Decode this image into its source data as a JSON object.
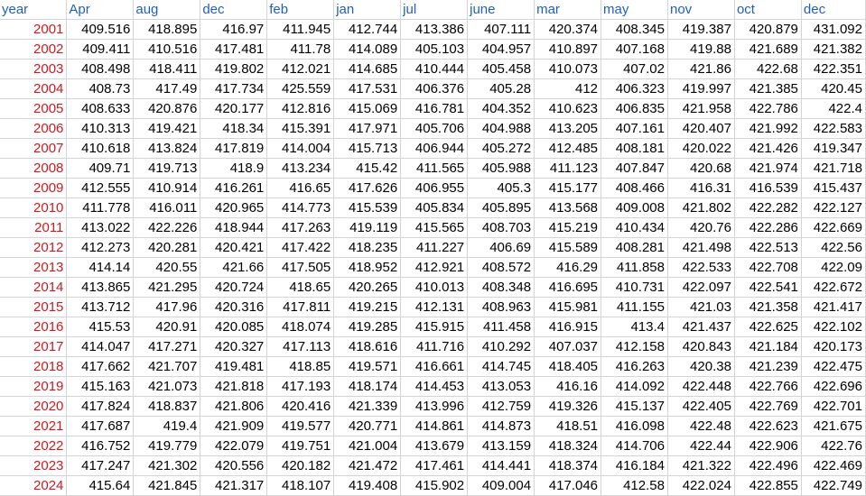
{
  "colors": {
    "header_text": "#1f5fbf",
    "year_text": "#d0191e",
    "cell_text": "#000000",
    "gridline": "#d4d4d4"
  },
  "headers": [
    "year",
    "Apr",
    "aug",
    "dec",
    "feb",
    "jan",
    "jul",
    "june",
    "mar",
    "may",
    "nov",
    "oct",
    "dec"
  ],
  "rows": [
    [
      "2001",
      "409.516",
      "418.895",
      "416.97",
      "411.945",
      "412.744",
      "413.386",
      "407.111",
      "420.374",
      "408.345",
      "419.387",
      "420.879",
      "431.092"
    ],
    [
      "2002",
      "409.411",
      "410.516",
      "417.481",
      "411.78",
      "414.089",
      "405.103",
      "404.957",
      "410.897",
      "407.168",
      "419.88",
      "421.689",
      "421.382"
    ],
    [
      "2003",
      "408.498",
      "418.411",
      "419.802",
      "412.021",
      "414.685",
      "410.444",
      "405.458",
      "410.073",
      "407.02",
      "421.86",
      "422.68",
      "422.351"
    ],
    [
      "2004",
      "408.73",
      "417.49",
      "417.734",
      "425.559",
      "417.531",
      "406.376",
      "405.28",
      "412",
      "406.323",
      "419.997",
      "421.385",
      "420.45"
    ],
    [
      "2005",
      "408.633",
      "420.876",
      "420.177",
      "412.816",
      "415.069",
      "416.781",
      "404.352",
      "410.623",
      "406.835",
      "421.958",
      "422.786",
      "422.4"
    ],
    [
      "2006",
      "410.313",
      "419.421",
      "418.34",
      "415.391",
      "417.971",
      "405.706",
      "404.988",
      "413.205",
      "407.161",
      "420.407",
      "421.992",
      "422.583"
    ],
    [
      "2007",
      "410.618",
      "413.824",
      "417.819",
      "414.004",
      "415.713",
      "406.944",
      "405.272",
      "412.485",
      "408.181",
      "420.022",
      "421.426",
      "419.347"
    ],
    [
      "2008",
      "409.71",
      "419.713",
      "418.9",
      "413.234",
      "415.42",
      "411.565",
      "405.988",
      "411.123",
      "407.847",
      "420.68",
      "421.974",
      "421.718"
    ],
    [
      "2009",
      "412.555",
      "410.914",
      "416.261",
      "416.65",
      "417.626",
      "406.955",
      "405.3",
      "415.177",
      "408.466",
      "416.31",
      "416.539",
      "415.437"
    ],
    [
      "2010",
      "411.778",
      "416.011",
      "420.965",
      "414.773",
      "415.539",
      "405.834",
      "405.895",
      "413.568",
      "409.008",
      "421.802",
      "422.282",
      "422.127"
    ],
    [
      "2011",
      "413.022",
      "422.226",
      "418.944",
      "417.263",
      "419.119",
      "415.565",
      "408.703",
      "415.219",
      "410.434",
      "420.76",
      "422.286",
      "422.669"
    ],
    [
      "2012",
      "412.273",
      "420.281",
      "420.421",
      "417.422",
      "418.235",
      "411.227",
      "406.69",
      "415.589",
      "408.281",
      "421.498",
      "422.513",
      "422.56"
    ],
    [
      "2013",
      "414.14",
      "420.55",
      "421.66",
      "417.505",
      "418.952",
      "412.921",
      "408.572",
      "416.29",
      "411.858",
      "422.533",
      "422.708",
      "422.09"
    ],
    [
      "2014",
      "413.865",
      "421.295",
      "420.724",
      "418.65",
      "420.265",
      "410.013",
      "408.348",
      "416.695",
      "410.731",
      "422.097",
      "422.541",
      "422.672"
    ],
    [
      "2015",
      "413.712",
      "417.96",
      "420.316",
      "417.811",
      "419.215",
      "412.131",
      "408.963",
      "415.981",
      "411.155",
      "421.03",
      "421.358",
      "421.417"
    ],
    [
      "2016",
      "415.53",
      "420.91",
      "420.085",
      "418.074",
      "419.285",
      "415.915",
      "411.458",
      "416.915",
      "413.4",
      "421.437",
      "422.625",
      "422.102"
    ],
    [
      "2017",
      "414.047",
      "417.271",
      "420.327",
      "417.113",
      "418.616",
      "411.716",
      "410.292",
      "407.037",
      "412.158",
      "420.843",
      "421.184",
      "420.173"
    ],
    [
      "2018",
      "417.662",
      "421.707",
      "419.481",
      "418.85",
      "419.571",
      "416.661",
      "414.745",
      "418.405",
      "416.263",
      "420.38",
      "421.239",
      "422.475"
    ],
    [
      "2019",
      "415.163",
      "421.073",
      "421.818",
      "417.193",
      "418.174",
      "414.453",
      "413.053",
      "416.16",
      "414.092",
      "422.448",
      "422.766",
      "422.696"
    ],
    [
      "2020",
      "417.824",
      "418.837",
      "421.806",
      "420.416",
      "421.339",
      "413.996",
      "412.759",
      "419.326",
      "415.137",
      "422.405",
      "422.769",
      "422.701"
    ],
    [
      "2021",
      "417.687",
      "419.4",
      "421.909",
      "419.577",
      "420.771",
      "414.861",
      "414.873",
      "418.51",
      "416.098",
      "422.48",
      "422.623",
      "421.675"
    ],
    [
      "2022",
      "416.752",
      "419.779",
      "422.079",
      "419.751",
      "421.004",
      "413.679",
      "413.159",
      "418.324",
      "414.706",
      "422.44",
      "422.906",
      "422.76"
    ],
    [
      "2023",
      "417.247",
      "421.302",
      "420.556",
      "420.182",
      "421.472",
      "417.461",
      "414.441",
      "418.374",
      "416.184",
      "421.322",
      "422.496",
      "422.469"
    ],
    [
      "2024",
      "415.64",
      "421.845",
      "421.317",
      "418.107",
      "419.408",
      "415.902",
      "409.004",
      "417.046",
      "412.58",
      "422.024",
      "422.855",
      "422.749"
    ]
  ]
}
